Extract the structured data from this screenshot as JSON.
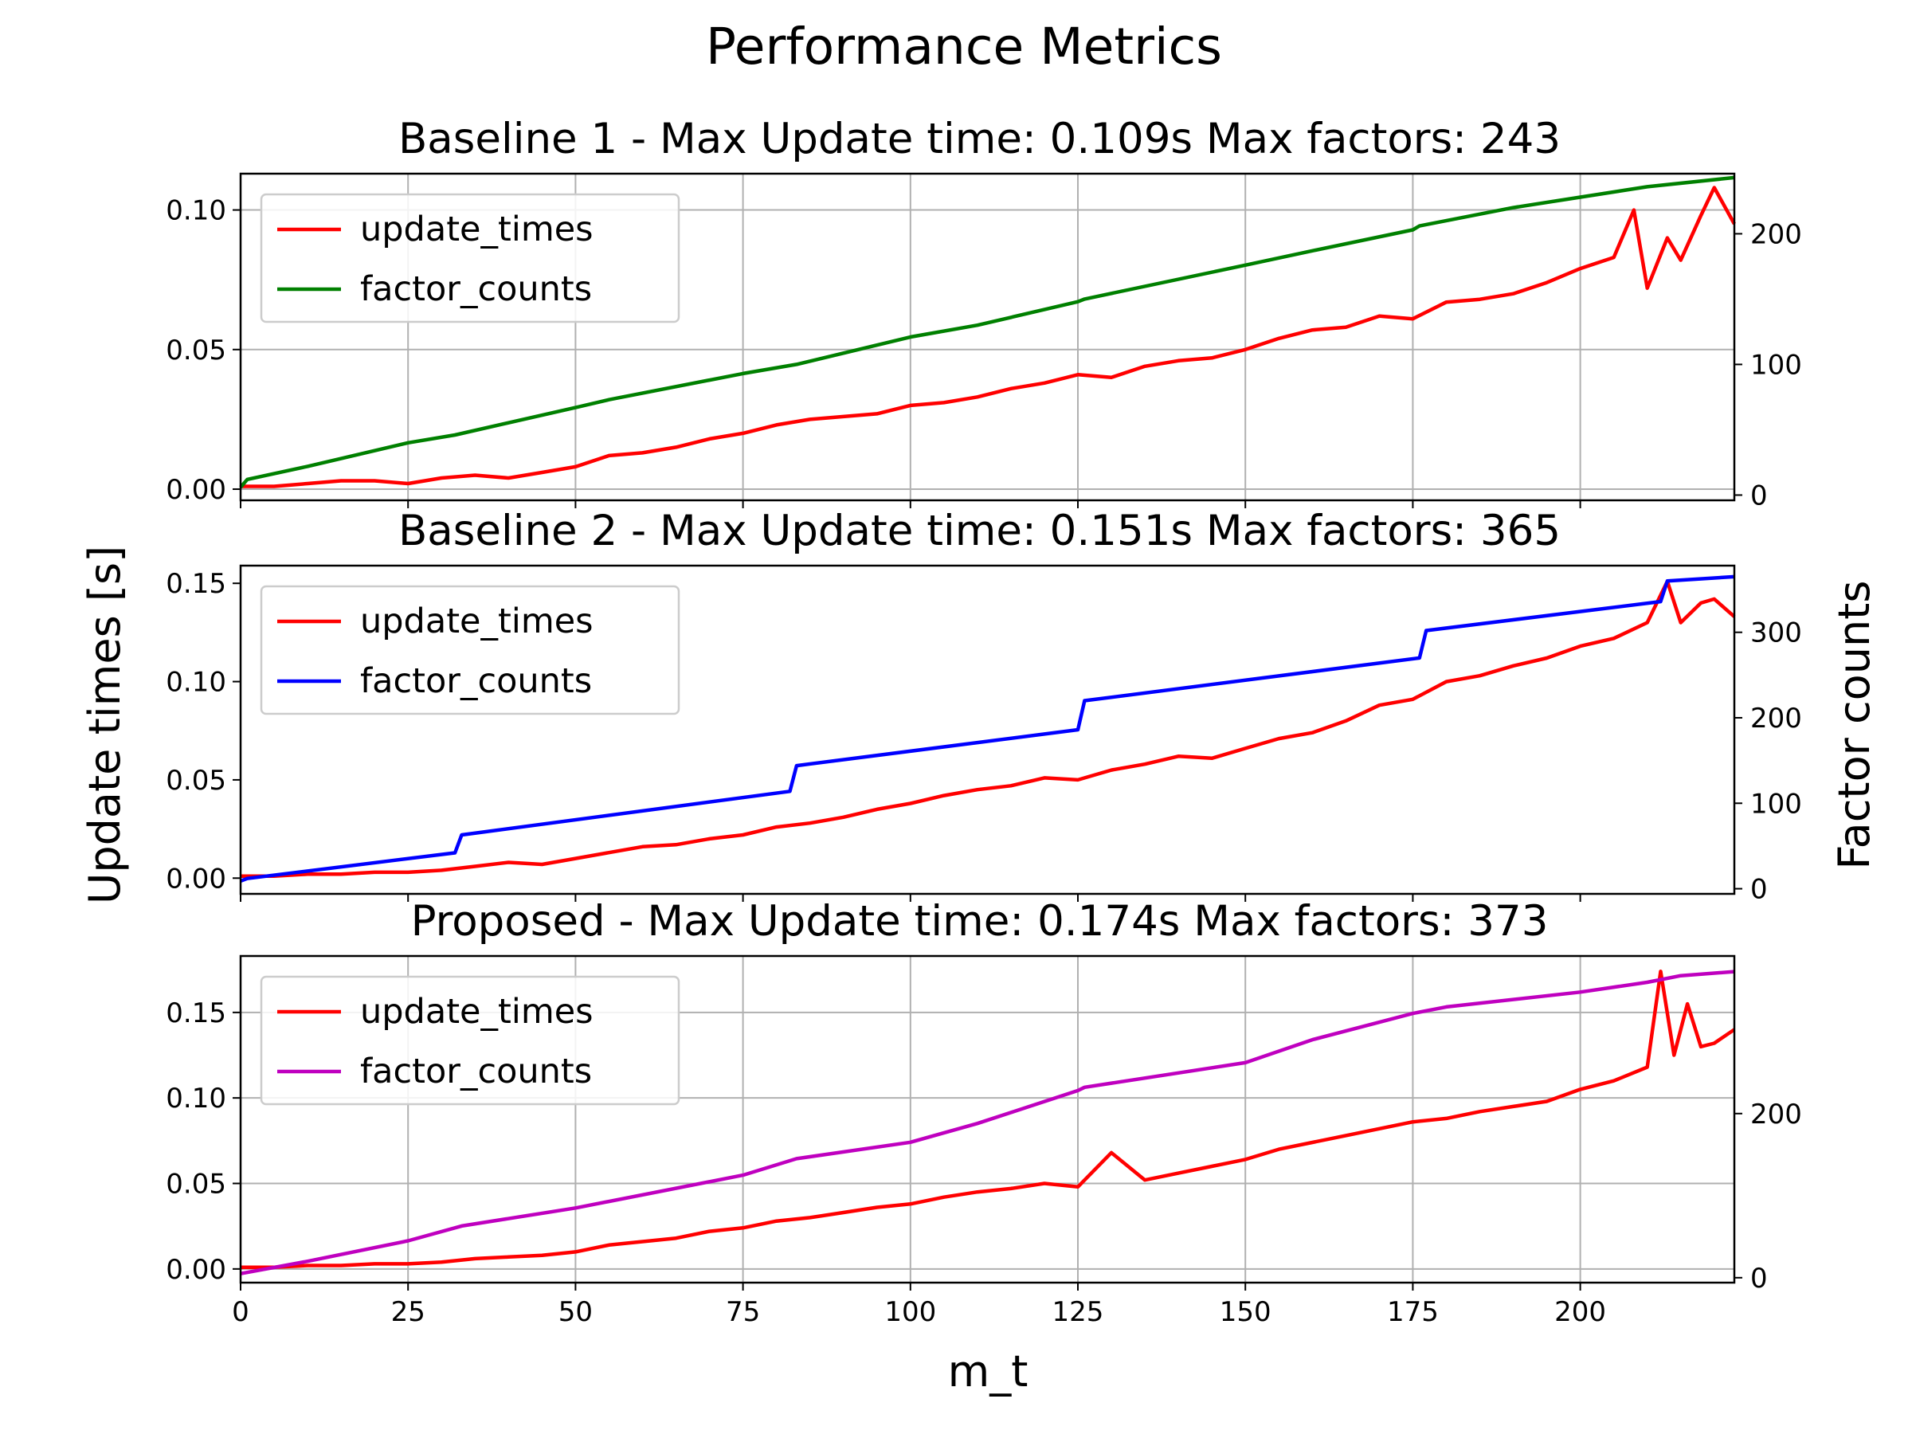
{
  "figure": {
    "title": "Performance Metrics",
    "xlabel": "m_t",
    "ylabel_left": "Update times [s]",
    "ylabel_right": "Factor counts"
  },
  "chart_data": [
    {
      "type": "line",
      "title": "Baseline 1 - Max Update time: 0.109s Max factors: 243",
      "xlim": [
        0,
        223
      ],
      "ylim": [
        -0.004,
        0.113
      ],
      "y2lim": [
        -4,
        246
      ],
      "yticks": [
        "0.00",
        "0.05",
        "0.10"
      ],
      "y2ticks": [
        "0",
        "100",
        "200"
      ],
      "xticks": [
        "0",
        "25",
        "50",
        "75",
        "100",
        "125",
        "150",
        "175",
        "200"
      ],
      "show_xticklabels": false,
      "grid": true,
      "legend_position": "upper-left",
      "series": [
        {
          "name": "update_times",
          "axis": "left",
          "color": "#ff0000",
          "x": [
            0,
            5,
            10,
            15,
            20,
            25,
            30,
            35,
            40,
            45,
            50,
            55,
            60,
            65,
            70,
            75,
            80,
            85,
            90,
            95,
            100,
            105,
            110,
            115,
            120,
            125,
            130,
            135,
            140,
            145,
            150,
            155,
            160,
            165,
            170,
            175,
            180,
            185,
            190,
            195,
            200,
            205,
            208,
            210,
            213,
            215,
            218,
            220,
            223
          ],
          "values": [
            0.001,
            0.001,
            0.002,
            0.003,
            0.003,
            0.002,
            0.004,
            0.005,
            0.004,
            0.006,
            0.008,
            0.012,
            0.013,
            0.015,
            0.018,
            0.02,
            0.023,
            0.025,
            0.026,
            0.027,
            0.03,
            0.031,
            0.033,
            0.036,
            0.038,
            0.041,
            0.04,
            0.044,
            0.046,
            0.047,
            0.05,
            0.054,
            0.057,
            0.058,
            0.062,
            0.061,
            0.067,
            0.068,
            0.07,
            0.074,
            0.079,
            0.083,
            0.1,
            0.072,
            0.09,
            0.082,
            0.098,
            0.108,
            0.095
          ]
        },
        {
          "name": "factor_counts",
          "axis": "right",
          "color": "#008000",
          "x": [
            0,
            1,
            10,
            25,
            32,
            50,
            55,
            75,
            83,
            100,
            110,
            125,
            126,
            150,
            160,
            175,
            176,
            190,
            200,
            210,
            223
          ],
          "values": [
            6,
            12,
            22,
            40,
            46,
            67,
            73,
            93,
            100,
            121,
            130,
            148,
            150,
            176,
            187,
            203,
            206,
            220,
            228,
            236,
            243
          ]
        }
      ]
    },
    {
      "type": "line",
      "title": "Baseline 2 - Max Update time: 0.151s Max factors: 365",
      "xlim": [
        0,
        223
      ],
      "ylim": [
        -0.008,
        0.159
      ],
      "y2lim": [
        -6,
        378
      ],
      "yticks": [
        "0.00",
        "0.05",
        "0.10",
        "0.15"
      ],
      "y2ticks": [
        "0",
        "100",
        "200",
        "300"
      ],
      "xticks": [
        "0",
        "25",
        "50",
        "75",
        "100",
        "125",
        "150",
        "175",
        "200"
      ],
      "show_xticklabels": false,
      "grid": false,
      "legend_position": "upper-left",
      "series": [
        {
          "name": "update_times",
          "axis": "left",
          "color": "#ff0000",
          "x": [
            0,
            5,
            10,
            15,
            20,
            25,
            30,
            35,
            40,
            45,
            50,
            55,
            60,
            65,
            70,
            75,
            80,
            85,
            90,
            95,
            100,
            105,
            110,
            115,
            120,
            125,
            130,
            135,
            140,
            145,
            150,
            155,
            160,
            165,
            170,
            175,
            180,
            185,
            190,
            195,
            200,
            205,
            210,
            213,
            215,
            218,
            220,
            223
          ],
          "values": [
            0.001,
            0.001,
            0.002,
            0.002,
            0.003,
            0.003,
            0.004,
            0.006,
            0.008,
            0.007,
            0.01,
            0.013,
            0.016,
            0.017,
            0.02,
            0.022,
            0.026,
            0.028,
            0.031,
            0.035,
            0.038,
            0.042,
            0.045,
            0.047,
            0.051,
            0.05,
            0.055,
            0.058,
            0.062,
            0.061,
            0.066,
            0.071,
            0.074,
            0.08,
            0.088,
            0.091,
            0.1,
            0.103,
            0.108,
            0.112,
            0.118,
            0.122,
            0.13,
            0.151,
            0.13,
            0.14,
            0.142,
            0.133
          ]
        },
        {
          "name": "factor_counts",
          "axis": "right",
          "color": "#0000ff",
          "x": [
            0,
            1,
            32,
            33,
            82,
            83,
            125,
            126,
            176,
            177,
            212,
            213,
            223
          ],
          "values": [
            9,
            12,
            42,
            63,
            114,
            144,
            186,
            220,
            270,
            302,
            336,
            360,
            365
          ]
        }
      ]
    },
    {
      "type": "line",
      "title": "Proposed - Max Update time: 0.174s Max factors: 373",
      "xlim": [
        0,
        223
      ],
      "ylim": [
        -0.008,
        0.183
      ],
      "y2lim": [
        -6,
        392
      ],
      "yticks": [
        "0.00",
        "0.05",
        "0.10",
        "0.15"
      ],
      "y2ticks": [
        "0",
        "200"
      ],
      "xticks": [
        "0",
        "25",
        "50",
        "75",
        "100",
        "125",
        "150",
        "175",
        "200"
      ],
      "show_xticklabels": true,
      "grid": true,
      "legend_position": "upper-left",
      "series": [
        {
          "name": "update_times",
          "axis": "left",
          "color": "#ff0000",
          "x": [
            0,
            5,
            10,
            15,
            20,
            25,
            30,
            35,
            40,
            45,
            50,
            55,
            60,
            65,
            70,
            75,
            80,
            85,
            90,
            95,
            100,
            105,
            110,
            115,
            120,
            125,
            130,
            135,
            140,
            145,
            150,
            155,
            160,
            165,
            170,
            175,
            180,
            185,
            190,
            195,
            200,
            205,
            210,
            212,
            214,
            216,
            218,
            220,
            223
          ],
          "values": [
            0.001,
            0.001,
            0.002,
            0.002,
            0.003,
            0.003,
            0.004,
            0.006,
            0.007,
            0.008,
            0.01,
            0.014,
            0.016,
            0.018,
            0.022,
            0.024,
            0.028,
            0.03,
            0.033,
            0.036,
            0.038,
            0.042,
            0.045,
            0.047,
            0.05,
            0.048,
            0.068,
            0.052,
            0.056,
            0.06,
            0.064,
            0.07,
            0.074,
            0.078,
            0.082,
            0.086,
            0.088,
            0.092,
            0.095,
            0.098,
            0.105,
            0.11,
            0.118,
            0.174,
            0.125,
            0.155,
            0.13,
            0.132,
            0.14
          ]
        },
        {
          "name": "factor_counts",
          "axis": "right",
          "color": "#bf00bf",
          "x": [
            0,
            10,
            25,
            33,
            50,
            75,
            83,
            100,
            110,
            125,
            126,
            150,
            160,
            175,
            180,
            200,
            210,
            215,
            223
          ],
          "values": [
            5,
            20,
            45,
            63,
            85,
            125,
            145,
            165,
            188,
            228,
            232,
            262,
            290,
            322,
            330,
            348,
            360,
            368,
            373
          ]
        }
      ]
    }
  ]
}
